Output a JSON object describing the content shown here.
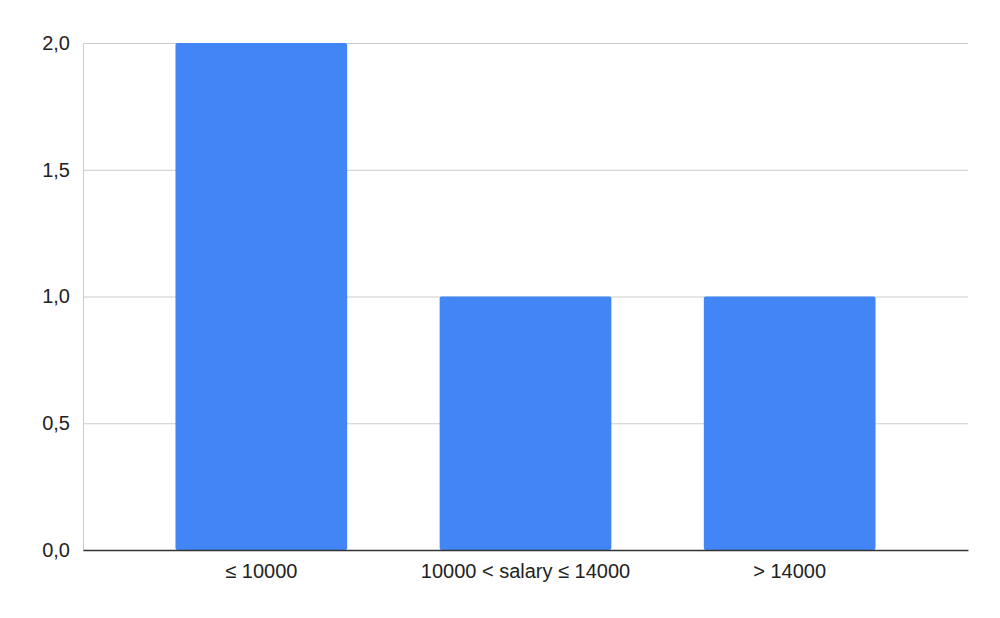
{
  "chart_data": {
    "type": "bar",
    "categories": [
      "≤ 10000",
      "10000 < salary ≤ 14000",
      "> 14000"
    ],
    "values": [
      2,
      1,
      1
    ],
    "color": "#4285f4",
    "ylim": [
      0,
      2
    ],
    "yticks": [
      {
        "value": 0,
        "label": "0,0"
      },
      {
        "value": 0.5,
        "label": "0,5"
      },
      {
        "value": 1,
        "label": "1,0"
      },
      {
        "value": 1.5,
        "label": "1,5"
      },
      {
        "value": 2,
        "label": "2,0"
      }
    ],
    "grid": true
  }
}
